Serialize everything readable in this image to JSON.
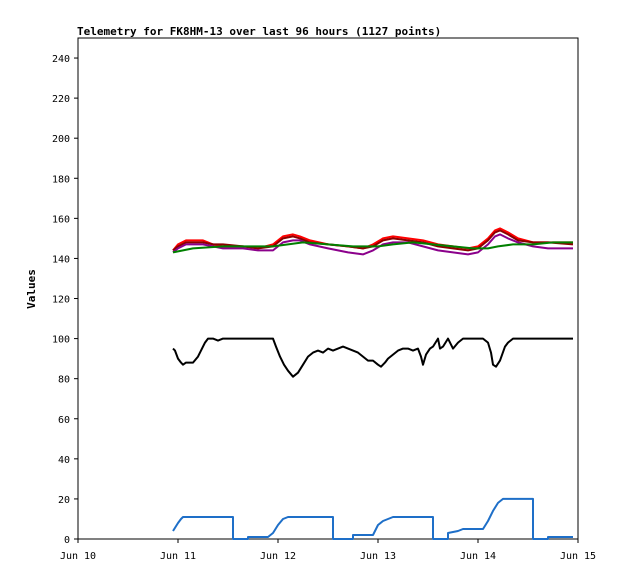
{
  "chart_data": {
    "type": "line",
    "title": "Telemetry for FK8HM-13 over last 96 hours (1127 points)",
    "xlabel": "",
    "ylabel": "Values",
    "xlim": [
      "Jun 10",
      "Jun 15"
    ],
    "ylim": [
      0,
      250
    ],
    "grid": false,
    "legend": "none",
    "x_ticks": [
      "Jun 10",
      "Jun 11",
      "Jun 12",
      "Jun 13",
      "Jun 14",
      "Jun 15"
    ],
    "y_ticks": [
      0,
      20,
      40,
      60,
      80,
      100,
      120,
      140,
      160,
      180,
      200,
      220,
      240
    ],
    "series": [
      {
        "color": "#ff0000",
        "points": [
          [
            0.95,
            144
          ],
          [
            1.0,
            147
          ],
          [
            1.08,
            149
          ],
          [
            1.25,
            149
          ],
          [
            1.35,
            147
          ],
          [
            1.45,
            146
          ],
          [
            1.65,
            146
          ],
          [
            1.8,
            145
          ],
          [
            1.95,
            147
          ],
          [
            2.05,
            151
          ],
          [
            2.15,
            152
          ],
          [
            2.22,
            151
          ],
          [
            2.32,
            149
          ],
          [
            2.5,
            147
          ],
          [
            2.7,
            146
          ],
          [
            2.85,
            145
          ],
          [
            2.95,
            147
          ],
          [
            3.05,
            150
          ],
          [
            3.15,
            151
          ],
          [
            3.3,
            150
          ],
          [
            3.45,
            149
          ],
          [
            3.6,
            147
          ],
          [
            3.75,
            146
          ],
          [
            3.9,
            145
          ],
          [
            4.0,
            146
          ],
          [
            4.1,
            150
          ],
          [
            4.17,
            154
          ],
          [
            4.22,
            155
          ],
          [
            4.3,
            153
          ],
          [
            4.4,
            150
          ],
          [
            4.55,
            148
          ],
          [
            4.7,
            148
          ],
          [
            4.95,
            148
          ]
        ]
      },
      {
        "color": "#8b0000",
        "points": [
          [
            0.95,
            144
          ],
          [
            1.0,
            146
          ],
          [
            1.08,
            148
          ],
          [
            1.25,
            148
          ],
          [
            1.35,
            147
          ],
          [
            1.45,
            147
          ],
          [
            1.65,
            146
          ],
          [
            1.8,
            145
          ],
          [
            1.95,
            146
          ],
          [
            2.05,
            150
          ],
          [
            2.15,
            151
          ],
          [
            2.22,
            150
          ],
          [
            2.32,
            148
          ],
          [
            2.5,
            147
          ],
          [
            2.7,
            146
          ],
          [
            2.85,
            145
          ],
          [
            2.95,
            146
          ],
          [
            3.05,
            149
          ],
          [
            3.15,
            150
          ],
          [
            3.3,
            149
          ],
          [
            3.45,
            148
          ],
          [
            3.6,
            146
          ],
          [
            3.75,
            145
          ],
          [
            3.9,
            144
          ],
          [
            4.0,
            145
          ],
          [
            4.1,
            149
          ],
          [
            4.17,
            153
          ],
          [
            4.22,
            154
          ],
          [
            4.3,
            152
          ],
          [
            4.4,
            149
          ],
          [
            4.55,
            148
          ],
          [
            4.7,
            148
          ],
          [
            4.95,
            147
          ]
        ]
      },
      {
        "color": "#8b008b",
        "points": [
          [
            0.95,
            143
          ],
          [
            1.0,
            145
          ],
          [
            1.08,
            147
          ],
          [
            1.25,
            147
          ],
          [
            1.35,
            146
          ],
          [
            1.45,
            145
          ],
          [
            1.65,
            145
          ],
          [
            1.8,
            144
          ],
          [
            1.95,
            144
          ],
          [
            2.05,
            148
          ],
          [
            2.15,
            149
          ],
          [
            2.22,
            149
          ],
          [
            2.32,
            147
          ],
          [
            2.5,
            145
          ],
          [
            2.7,
            143
          ],
          [
            2.85,
            142
          ],
          [
            2.95,
            144
          ],
          [
            3.05,
            147
          ],
          [
            3.15,
            148
          ],
          [
            3.3,
            148
          ],
          [
            3.45,
            146
          ],
          [
            3.6,
            144
          ],
          [
            3.75,
            143
          ],
          [
            3.9,
            142
          ],
          [
            4.0,
            143
          ],
          [
            4.1,
            147
          ],
          [
            4.17,
            151
          ],
          [
            4.22,
            152
          ],
          [
            4.3,
            150
          ],
          [
            4.4,
            148
          ],
          [
            4.55,
            146
          ],
          [
            4.7,
            145
          ],
          [
            4.95,
            145
          ]
        ]
      },
      {
        "color": "#008000",
        "points": [
          [
            0.95,
            143
          ],
          [
            1.05,
            144
          ],
          [
            1.15,
            145
          ],
          [
            1.45,
            146
          ],
          [
            1.95,
            146
          ],
          [
            2.1,
            147
          ],
          [
            2.25,
            148
          ],
          [
            2.5,
            147
          ],
          [
            2.75,
            146
          ],
          [
            3.0,
            146
          ],
          [
            3.15,
            147
          ],
          [
            3.35,
            148
          ],
          [
            3.55,
            147
          ],
          [
            3.75,
            146
          ],
          [
            3.95,
            145
          ],
          [
            4.1,
            145
          ],
          [
            4.2,
            146
          ],
          [
            4.35,
            147
          ],
          [
            4.55,
            147
          ],
          [
            4.75,
            148
          ],
          [
            4.95,
            148
          ]
        ]
      },
      {
        "color": "#000000",
        "points": [
          [
            0.95,
            95
          ],
          [
            0.97,
            94
          ],
          [
            1.0,
            90
          ],
          [
            1.03,
            88
          ],
          [
            1.05,
            87
          ],
          [
            1.08,
            88
          ],
          [
            1.12,
            88
          ],
          [
            1.15,
            88
          ],
          [
            1.2,
            91
          ],
          [
            1.23,
            94
          ],
          [
            1.27,
            98
          ],
          [
            1.3,
            100
          ],
          [
            1.35,
            100
          ],
          [
            1.4,
            99
          ],
          [
            1.45,
            100
          ],
          [
            1.5,
            100
          ],
          [
            1.6,
            100
          ],
          [
            1.75,
            100
          ],
          [
            1.95,
            100
          ],
          [
            1.98,
            96
          ],
          [
            2.02,
            91
          ],
          [
            2.06,
            87
          ],
          [
            2.1,
            84
          ],
          [
            2.15,
            81
          ],
          [
            2.2,
            83
          ],
          [
            2.25,
            87
          ],
          [
            2.3,
            91
          ],
          [
            2.35,
            93
          ],
          [
            2.4,
            94
          ],
          [
            2.45,
            93
          ],
          [
            2.5,
            95
          ],
          [
            2.55,
            94
          ],
          [
            2.6,
            95
          ],
          [
            2.65,
            96
          ],
          [
            2.7,
            95
          ],
          [
            2.75,
            94
          ],
          [
            2.8,
            93
          ],
          [
            2.85,
            91
          ],
          [
            2.9,
            89
          ],
          [
            2.95,
            89
          ],
          [
            3.0,
            87
          ],
          [
            3.03,
            86
          ],
          [
            3.07,
            88
          ],
          [
            3.1,
            90
          ],
          [
            3.15,
            92
          ],
          [
            3.2,
            94
          ],
          [
            3.25,
            95
          ],
          [
            3.3,
            95
          ],
          [
            3.35,
            94
          ],
          [
            3.4,
            95
          ],
          [
            3.43,
            91
          ],
          [
            3.45,
            87
          ],
          [
            3.48,
            92
          ],
          [
            3.52,
            95
          ],
          [
            3.55,
            96
          ],
          [
            3.6,
            100
          ],
          [
            3.62,
            95
          ],
          [
            3.65,
            96
          ],
          [
            3.7,
            100
          ],
          [
            3.72,
            98
          ],
          [
            3.75,
            95
          ],
          [
            3.8,
            98
          ],
          [
            3.85,
            100
          ],
          [
            3.95,
            100
          ],
          [
            4.05,
            100
          ],
          [
            4.1,
            98
          ],
          [
            4.13,
            93
          ],
          [
            4.15,
            87
          ],
          [
            4.18,
            86
          ],
          [
            4.22,
            89
          ],
          [
            4.27,
            96
          ],
          [
            4.3,
            98
          ],
          [
            4.35,
            100
          ],
          [
            4.45,
            100
          ],
          [
            4.95,
            100
          ]
        ]
      },
      {
        "color": "#1e6fc8",
        "points": [
          [
            0.95,
            4
          ],
          [
            1.0,
            8
          ],
          [
            1.03,
            10
          ],
          [
            1.05,
            11
          ],
          [
            1.1,
            11
          ],
          [
            1.55,
            11
          ],
          [
            1.55,
            0
          ],
          [
            1.7,
            0
          ],
          [
            1.7,
            1
          ],
          [
            1.9,
            1
          ],
          [
            1.95,
            3
          ],
          [
            2.0,
            7
          ],
          [
            2.05,
            10
          ],
          [
            2.1,
            11
          ],
          [
            2.55,
            11
          ],
          [
            2.55,
            0
          ],
          [
            2.75,
            0
          ],
          [
            2.75,
            2
          ],
          [
            2.95,
            2
          ],
          [
            3.0,
            7
          ],
          [
            3.05,
            9
          ],
          [
            3.1,
            10
          ],
          [
            3.15,
            11
          ],
          [
            3.55,
            11
          ],
          [
            3.55,
            0
          ],
          [
            3.7,
            0
          ],
          [
            3.7,
            3
          ],
          [
            3.8,
            4
          ],
          [
            3.85,
            5
          ],
          [
            4.05,
            5
          ],
          [
            4.1,
            9
          ],
          [
            4.15,
            14
          ],
          [
            4.2,
            18
          ],
          [
            4.25,
            20
          ],
          [
            4.55,
            20
          ],
          [
            4.55,
            0
          ],
          [
            4.7,
            0
          ],
          [
            4.7,
            1
          ],
          [
            4.95,
            1
          ]
        ]
      }
    ]
  }
}
